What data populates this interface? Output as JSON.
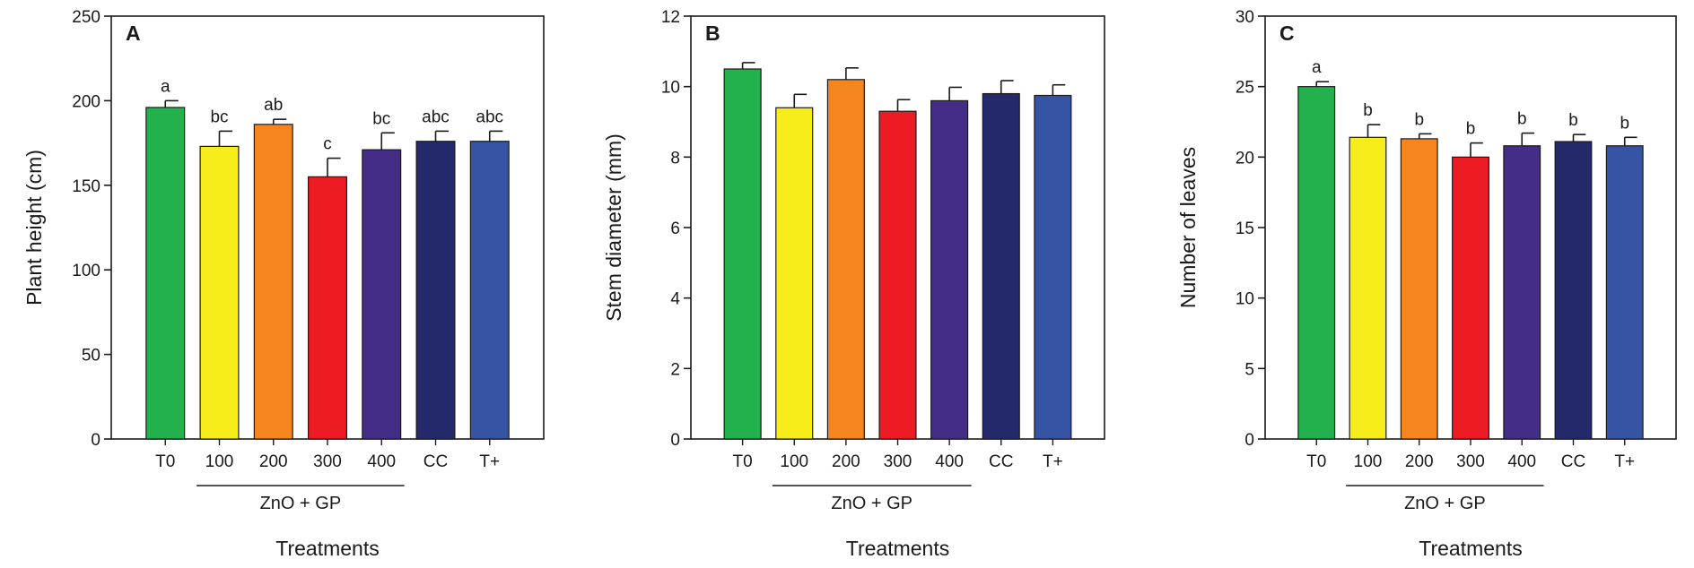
{
  "colors": [
    "#22b14c",
    "#f5ec1a",
    "#f5861f",
    "#ed1c24",
    "#442d86",
    "#23296b",
    "#3653a4"
  ],
  "chart_data": [
    {
      "type": "bar",
      "panel": "A",
      "categories": [
        "T0",
        "100",
        "200",
        "300",
        "400",
        "CC",
        "T+"
      ],
      "values": [
        196,
        173,
        186,
        155,
        171,
        176,
        176
      ],
      "errors": [
        4,
        9,
        3,
        11,
        10,
        6,
        6
      ],
      "significance": [
        "a",
        "bc",
        "ab",
        "c",
        "bc",
        "abc",
        "abc"
      ],
      "group_label": "ZnO + GP",
      "xlabel": "Treatments",
      "ylabel": "Plant height (cm)",
      "ylim": [
        0,
        250
      ],
      "yticks": [
        0,
        50,
        100,
        150,
        200,
        250
      ]
    },
    {
      "type": "bar",
      "panel": "B",
      "categories": [
        "T0",
        "100",
        "200",
        "300",
        "400",
        "CC",
        "T+"
      ],
      "values": [
        10.5,
        9.4,
        10.2,
        9.3,
        9.6,
        9.8,
        9.75
      ],
      "errors": [
        0.18,
        0.38,
        0.33,
        0.33,
        0.38,
        0.37,
        0.3
      ],
      "significance": [],
      "group_label": "ZnO + GP",
      "xlabel": "Treatments",
      "ylabel": "Stem diameter (mm)",
      "ylim": [
        0,
        12
      ],
      "yticks": [
        0,
        2,
        4,
        6,
        8,
        10,
        12
      ]
    },
    {
      "type": "bar",
      "panel": "C",
      "categories": [
        "T0",
        "100",
        "200",
        "300",
        "400",
        "CC",
        "T+"
      ],
      "values": [
        25,
        21.4,
        21.3,
        20,
        20.8,
        21.1,
        20.8
      ],
      "errors": [
        0.35,
        0.9,
        0.35,
        1.0,
        0.9,
        0.5,
        0.6
      ],
      "significance": [
        "a",
        "b",
        "b",
        "b",
        "b",
        "b",
        "b"
      ],
      "group_label": "ZnO + GP",
      "xlabel": "Treatments",
      "ylabel": "Number of leaves",
      "ylim": [
        0,
        30
      ],
      "yticks": [
        0,
        5,
        10,
        15,
        20,
        25,
        30
      ]
    }
  ]
}
